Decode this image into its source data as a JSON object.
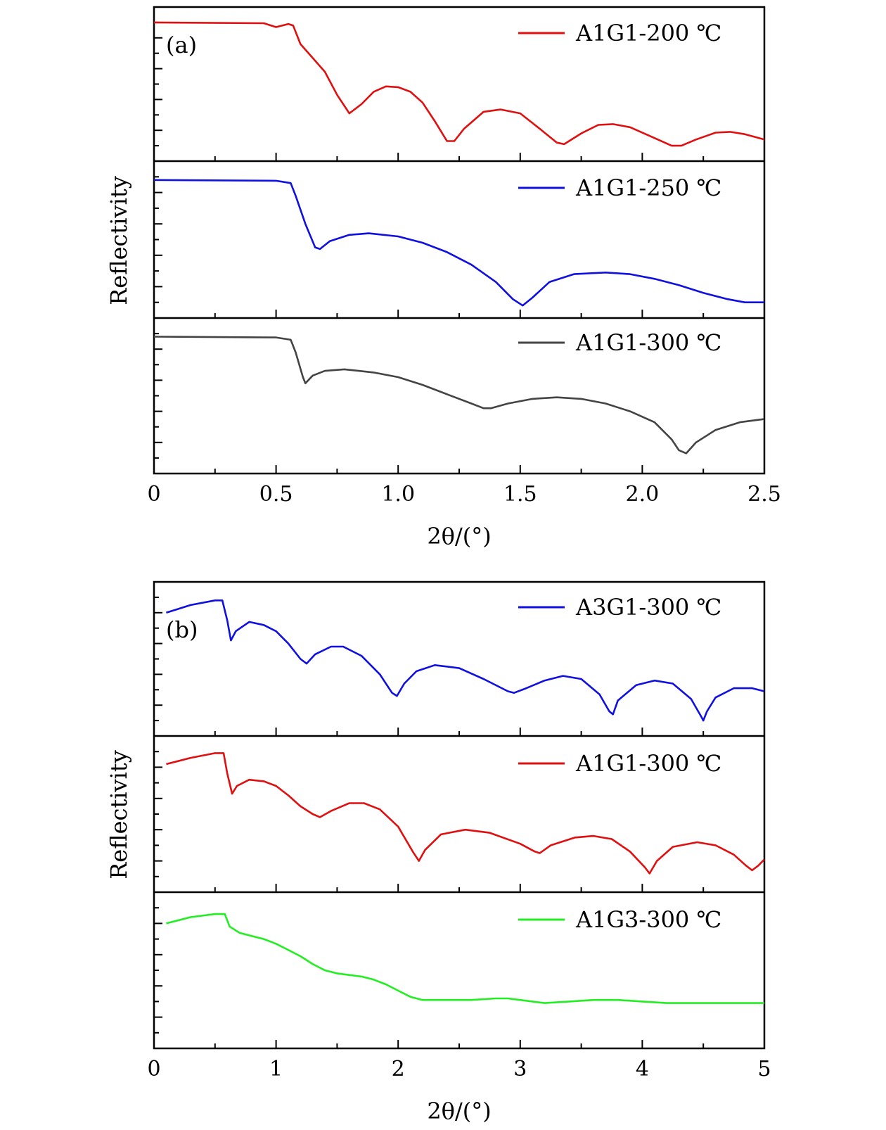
{
  "colors": {
    "red": "#e01010",
    "blue": "#1010e0",
    "gray": "#444444",
    "green": "#22ee22"
  },
  "figure": [
    {
      "panel_label": "(a)",
      "ylabel": "Reflectivity",
      "xlabel": "2θ/(°)",
      "x_ticks": [
        "0",
        "0.5",
        "1.0",
        "1.5",
        "2.0",
        "2.5"
      ]
    },
    {
      "panel_label": "(b)",
      "ylabel": "Reflectivity",
      "xlabel": "2θ/(°)",
      "x_ticks": [
        "0",
        "1",
        "2",
        "3",
        "4",
        "5"
      ]
    }
  ],
  "chart_data": [
    {
      "type": "line",
      "panel": "(a)",
      "xlabel": "2θ/(°)",
      "ylabel": "Reflectivity",
      "xlim": [
        0,
        2.5
      ],
      "grid": false,
      "legend_position": "top-right",
      "stacked_subplots": true,
      "series": [
        {
          "name": "A1G1-200 ℃",
          "color": "#e01010",
          "points": [
            [
              0,
              0.9
            ],
            [
              0.45,
              0.895
            ],
            [
              0.5,
              0.87
            ],
            [
              0.55,
              0.89
            ],
            [
              0.57,
              0.88
            ],
            [
              0.6,
              0.76
            ],
            [
              0.7,
              0.58
            ],
            [
              0.75,
              0.43
            ],
            [
              0.8,
              0.31
            ],
            [
              0.85,
              0.37
            ],
            [
              0.9,
              0.45
            ],
            [
              0.95,
              0.485
            ],
            [
              1.0,
              0.48
            ],
            [
              1.05,
              0.45
            ],
            [
              1.1,
              0.38
            ],
            [
              1.15,
              0.26
            ],
            [
              1.2,
              0.13
            ],
            [
              1.23,
              0.13
            ],
            [
              1.27,
              0.21
            ],
            [
              1.35,
              0.32
            ],
            [
              1.42,
              0.335
            ],
            [
              1.5,
              0.31
            ],
            [
              1.58,
              0.21
            ],
            [
              1.65,
              0.12
            ],
            [
              1.68,
              0.11
            ],
            [
              1.75,
              0.18
            ],
            [
              1.82,
              0.235
            ],
            [
              1.88,
              0.24
            ],
            [
              1.95,
              0.22
            ],
            [
              2.05,
              0.15
            ],
            [
              2.12,
              0.1
            ],
            [
              2.16,
              0.1
            ],
            [
              2.22,
              0.14
            ],
            [
              2.3,
              0.185
            ],
            [
              2.36,
              0.19
            ],
            [
              2.42,
              0.175
            ],
            [
              2.5,
              0.14
            ]
          ]
        },
        {
          "name": "A1G1-250 ℃",
          "color": "#1010e0",
          "points": [
            [
              0,
              0.88
            ],
            [
              0.5,
              0.875
            ],
            [
              0.56,
              0.86
            ],
            [
              0.58,
              0.78
            ],
            [
              0.62,
              0.6
            ],
            [
              0.66,
              0.45
            ],
            [
              0.68,
              0.44
            ],
            [
              0.72,
              0.49
            ],
            [
              0.8,
              0.53
            ],
            [
              0.88,
              0.54
            ],
            [
              1.0,
              0.52
            ],
            [
              1.1,
              0.48
            ],
            [
              1.2,
              0.42
            ],
            [
              1.3,
              0.34
            ],
            [
              1.4,
              0.23
            ],
            [
              1.47,
              0.12
            ],
            [
              1.51,
              0.08
            ],
            [
              1.55,
              0.13
            ],
            [
              1.62,
              0.23
            ],
            [
              1.72,
              0.28
            ],
            [
              1.85,
              0.29
            ],
            [
              1.95,
              0.28
            ],
            [
              2.05,
              0.25
            ],
            [
              2.15,
              0.21
            ],
            [
              2.25,
              0.16
            ],
            [
              2.35,
              0.12
            ],
            [
              2.42,
              0.1
            ],
            [
              2.5,
              0.1
            ]
          ]
        },
        {
          "name": "A1G1-300 ℃",
          "color": "#444444",
          "points": [
            [
              0,
              0.88
            ],
            [
              0.5,
              0.875
            ],
            [
              0.56,
              0.86
            ],
            [
              0.58,
              0.78
            ],
            [
              0.61,
              0.62
            ],
            [
              0.62,
              0.58
            ],
            [
              0.65,
              0.63
            ],
            [
              0.7,
              0.66
            ],
            [
              0.78,
              0.67
            ],
            [
              0.9,
              0.65
            ],
            [
              1.0,
              0.62
            ],
            [
              1.1,
              0.57
            ],
            [
              1.2,
              0.51
            ],
            [
              1.3,
              0.45
            ],
            [
              1.35,
              0.42
            ],
            [
              1.38,
              0.42
            ],
            [
              1.45,
              0.45
            ],
            [
              1.55,
              0.48
            ],
            [
              1.65,
              0.49
            ],
            [
              1.75,
              0.48
            ],
            [
              1.85,
              0.45
            ],
            [
              1.95,
              0.4
            ],
            [
              2.05,
              0.33
            ],
            [
              2.12,
              0.22
            ],
            [
              2.15,
              0.15
            ],
            [
              2.18,
              0.13
            ],
            [
              2.22,
              0.2
            ],
            [
              2.3,
              0.28
            ],
            [
              2.4,
              0.33
            ],
            [
              2.5,
              0.35
            ]
          ]
        }
      ]
    },
    {
      "type": "line",
      "panel": "(b)",
      "xlabel": "2θ/(°)",
      "ylabel": "Reflectivity",
      "xlim": [
        0,
        5
      ],
      "grid": false,
      "legend_position": "top-right",
      "stacked_subplots": true,
      "series": [
        {
          "name": "A3G1-300 ℃",
          "color": "#1010e0",
          "points": [
            [
              0.1,
              0.8
            ],
            [
              0.3,
              0.85
            ],
            [
              0.5,
              0.88
            ],
            [
              0.56,
              0.88
            ],
            [
              0.6,
              0.75
            ],
            [
              0.63,
              0.62
            ],
            [
              0.67,
              0.68
            ],
            [
              0.78,
              0.74
            ],
            [
              0.9,
              0.72
            ],
            [
              1.0,
              0.68
            ],
            [
              1.1,
              0.6
            ],
            [
              1.2,
              0.5
            ],
            [
              1.25,
              0.47
            ],
            [
              1.32,
              0.53
            ],
            [
              1.45,
              0.58
            ],
            [
              1.55,
              0.58
            ],
            [
              1.7,
              0.52
            ],
            [
              1.85,
              0.4
            ],
            [
              1.95,
              0.28
            ],
            [
              1.99,
              0.26
            ],
            [
              2.05,
              0.34
            ],
            [
              2.15,
              0.42
            ],
            [
              2.3,
              0.46
            ],
            [
              2.5,
              0.44
            ],
            [
              2.7,
              0.37
            ],
            [
              2.9,
              0.29
            ],
            [
              2.95,
              0.28
            ],
            [
              3.05,
              0.31
            ],
            [
              3.2,
              0.36
            ],
            [
              3.35,
              0.39
            ],
            [
              3.5,
              0.37
            ],
            [
              3.65,
              0.27
            ],
            [
              3.73,
              0.16
            ],
            [
              3.76,
              0.14
            ],
            [
              3.8,
              0.23
            ],
            [
              3.95,
              0.33
            ],
            [
              4.1,
              0.36
            ],
            [
              4.25,
              0.34
            ],
            [
              4.4,
              0.24
            ],
            [
              4.48,
              0.13
            ],
            [
              4.5,
              0.1
            ],
            [
              4.53,
              0.16
            ],
            [
              4.6,
              0.25
            ],
            [
              4.75,
              0.31
            ],
            [
              4.9,
              0.31
            ],
            [
              5.0,
              0.29
            ]
          ]
        },
        {
          "name": "A1G1-300 ℃",
          "color": "#e01010",
          "points": [
            [
              0.1,
              0.82
            ],
            [
              0.3,
              0.86
            ],
            [
              0.5,
              0.89
            ],
            [
              0.57,
              0.89
            ],
            [
              0.6,
              0.76
            ],
            [
              0.64,
              0.63
            ],
            [
              0.68,
              0.68
            ],
            [
              0.78,
              0.72
            ],
            [
              0.9,
              0.71
            ],
            [
              1.0,
              0.68
            ],
            [
              1.1,
              0.62
            ],
            [
              1.2,
              0.55
            ],
            [
              1.3,
              0.5
            ],
            [
              1.36,
              0.48
            ],
            [
              1.45,
              0.52
            ],
            [
              1.6,
              0.57
            ],
            [
              1.72,
              0.57
            ],
            [
              1.85,
              0.53
            ],
            [
              2.0,
              0.42
            ],
            [
              2.12,
              0.26
            ],
            [
              2.17,
              0.2
            ],
            [
              2.22,
              0.27
            ],
            [
              2.35,
              0.37
            ],
            [
              2.55,
              0.4
            ],
            [
              2.75,
              0.38
            ],
            [
              3.0,
              0.31
            ],
            [
              3.12,
              0.26
            ],
            [
              3.16,
              0.25
            ],
            [
              3.25,
              0.3
            ],
            [
              3.45,
              0.35
            ],
            [
              3.6,
              0.36
            ],
            [
              3.75,
              0.34
            ],
            [
              3.9,
              0.26
            ],
            [
              4.02,
              0.16
            ],
            [
              4.06,
              0.12
            ],
            [
              4.12,
              0.2
            ],
            [
              4.25,
              0.29
            ],
            [
              4.45,
              0.32
            ],
            [
              4.6,
              0.3
            ],
            [
              4.75,
              0.24
            ],
            [
              4.85,
              0.17
            ],
            [
              4.9,
              0.14
            ],
            [
              4.95,
              0.17
            ],
            [
              5.0,
              0.21
            ]
          ]
        },
        {
          "name": "A1G3-300 ℃",
          "color": "#22ee22",
          "points": [
            [
              0.1,
              0.8
            ],
            [
              0.3,
              0.84
            ],
            [
              0.5,
              0.86
            ],
            [
              0.58,
              0.86
            ],
            [
              0.62,
              0.78
            ],
            [
              0.7,
              0.74
            ],
            [
              0.8,
              0.72
            ],
            [
              0.9,
              0.7
            ],
            [
              1.0,
              0.67
            ],
            [
              1.1,
              0.63
            ],
            [
              1.2,
              0.59
            ],
            [
              1.3,
              0.54
            ],
            [
              1.4,
              0.5
            ],
            [
              1.5,
              0.48
            ],
            [
              1.6,
              0.47
            ],
            [
              1.7,
              0.46
            ],
            [
              1.8,
              0.44
            ],
            [
              1.9,
              0.41
            ],
            [
              2.0,
              0.37
            ],
            [
              2.1,
              0.33
            ],
            [
              2.2,
              0.31
            ],
            [
              2.4,
              0.31
            ],
            [
              2.6,
              0.31
            ],
            [
              2.8,
              0.32
            ],
            [
              2.9,
              0.32
            ],
            [
              3.0,
              0.31
            ],
            [
              3.2,
              0.29
            ],
            [
              3.4,
              0.3
            ],
            [
              3.6,
              0.31
            ],
            [
              3.8,
              0.31
            ],
            [
              4.0,
              0.3
            ],
            [
              4.2,
              0.29
            ],
            [
              4.4,
              0.29
            ],
            [
              4.6,
              0.29
            ],
            [
              4.8,
              0.29
            ],
            [
              5.0,
              0.29
            ]
          ]
        }
      ]
    }
  ]
}
